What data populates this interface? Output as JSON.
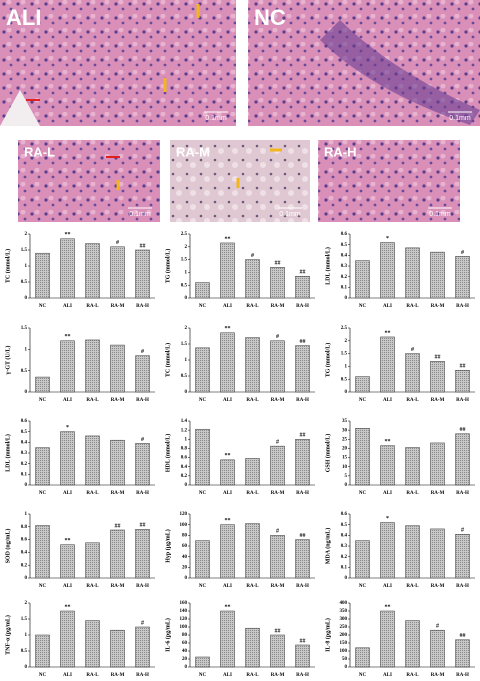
{
  "images": [
    {
      "label": "ALI",
      "scale": "0.1mm"
    },
    {
      "label": "NC",
      "scale": "0.1mm"
    },
    {
      "label": "RA-L",
      "scale": "0.1mm"
    },
    {
      "label": "RA-M",
      "scale": "0.1mm"
    },
    {
      "label": "RA-H",
      "scale": "0.1mm"
    }
  ],
  "chart_data": [
    {
      "type": "bar",
      "ylabel": "TC (mmol/L)",
      "categories": [
        "NC",
        "ALI",
        "RA-L",
        "RA-M",
        "RA-H"
      ],
      "values": [
        1.4,
        1.85,
        1.7,
        1.6,
        1.5
      ],
      "markers": [
        null,
        "**",
        null,
        "#",
        "##"
      ],
      "ylim": [
        0,
        2
      ],
      "yticks": [
        0,
        0.5,
        1,
        1.5,
        2
      ],
      "color": "#b0b0b0"
    },
    {
      "type": "bar",
      "ylabel": "TG (mmol/L)",
      "categories": [
        "NC",
        "ALI",
        "RA-L",
        "RA-M",
        "RA-H"
      ],
      "values": [
        0.6,
        2.15,
        1.5,
        1.2,
        0.85
      ],
      "markers": [
        null,
        "**",
        "#",
        "##",
        "##"
      ],
      "ylim": [
        0,
        2.5
      ],
      "yticks": [
        0,
        0.5,
        1,
        1.5,
        2,
        2.5
      ],
      "color": "#b0b0b0"
    },
    {
      "type": "bar",
      "ylabel": "LDL (mmol/L)",
      "categories": [
        "NC",
        "ALI",
        "RA-L",
        "RA-M",
        "RA-H"
      ],
      "values": [
        0.35,
        0.52,
        0.47,
        0.43,
        0.39
      ],
      "markers": [
        null,
        "*",
        null,
        null,
        "#"
      ],
      "ylim": [
        0,
        0.6
      ],
      "yticks": [
        0,
        0.1,
        0.2,
        0.3,
        0.4,
        0.5,
        0.6
      ],
      "color": "#b0b0b0"
    },
    {
      "type": "bar",
      "ylabel": "γ-GT (U/L)",
      "categories": [
        "NC",
        "ALI",
        "RA-L",
        "RA-M",
        "RA-H"
      ],
      "values": [
        0.35,
        1.2,
        1.22,
        1.1,
        0.85
      ],
      "markers": [
        null,
        "**",
        null,
        null,
        "#"
      ],
      "ylim": [
        0,
        1.5
      ],
      "yticks": [
        0,
        0.5,
        1,
        1.5
      ],
      "color": "#b0b0b0"
    },
    {
      "type": "bar",
      "ylabel": "TC (mmol/L)",
      "categories": [
        "NC",
        "ALI",
        "RA-L",
        "RA-M",
        "RA-H"
      ],
      "values": [
        1.38,
        1.85,
        1.7,
        1.6,
        1.45
      ],
      "markers": [
        null,
        "**",
        null,
        "#",
        "##"
      ],
      "ylim": [
        0,
        2
      ],
      "yticks": [
        0,
        0.5,
        1,
        1.5,
        2
      ],
      "color": "#b0b0b0"
    },
    {
      "type": "bar",
      "ylabel": "TG (mmol/L)",
      "categories": [
        "NC",
        "ALI",
        "RA-L",
        "RA-M",
        "RA-H"
      ],
      "values": [
        0.6,
        2.15,
        1.5,
        1.2,
        0.85
      ],
      "markers": [
        null,
        "**",
        "#",
        "##",
        "##"
      ],
      "ylim": [
        0,
        2.5
      ],
      "yticks": [
        0,
        0.5,
        1,
        1.5,
        2,
        2.5
      ],
      "color": "#b0b0b0"
    },
    {
      "type": "bar",
      "ylabel": "LDL (mmol/L)",
      "categories": [
        "NC",
        "ALI",
        "RA-L",
        "RA-M",
        "RA-H"
      ],
      "values": [
        0.35,
        0.5,
        0.46,
        0.42,
        0.39
      ],
      "markers": [
        null,
        "*",
        null,
        null,
        "#"
      ],
      "ylim": [
        0,
        0.6
      ],
      "yticks": [
        0,
        0.1,
        0.2,
        0.3,
        0.4,
        0.5,
        0.6
      ],
      "color": "#b0b0b0"
    },
    {
      "type": "bar",
      "ylabel": "HDL (mmol/L)",
      "categories": [
        "NC",
        "ALI",
        "RA-L",
        "RA-M",
        "RA-H"
      ],
      "values": [
        1.22,
        0.55,
        0.58,
        0.85,
        1.0
      ],
      "markers": [
        null,
        "**",
        null,
        "#",
        "##"
      ],
      "ylim": [
        0,
        1.4
      ],
      "yticks": [
        0,
        0.2,
        0.4,
        0.6,
        0.8,
        1,
        1.2,
        1.4
      ],
      "color": "#b0b0b0"
    },
    {
      "type": "bar",
      "ylabel": "GSH (mmol/L)",
      "categories": [
        "NC",
        "ALI",
        "RA-L",
        "RA-M",
        "RA-H"
      ],
      "values": [
        31,
        21.5,
        20.5,
        23,
        28
      ],
      "markers": [
        null,
        "**",
        null,
        null,
        "##"
      ],
      "ylim": [
        0,
        35
      ],
      "yticks": [
        0,
        5,
        10,
        15,
        20,
        25,
        30,
        35
      ],
      "color": "#b0b0b0"
    },
    {
      "type": "bar",
      "ylabel": "SOD (ng/mL)",
      "categories": [
        "NC",
        "ALI",
        "RA-L",
        "RA-M",
        "RA-H"
      ],
      "values": [
        0.82,
        0.52,
        0.55,
        0.75,
        0.76
      ],
      "markers": [
        null,
        "**",
        null,
        "##",
        "##"
      ],
      "ylim": [
        0,
        1
      ],
      "yticks": [
        0,
        0.2,
        0.4,
        0.6,
        0.8,
        1
      ],
      "color": "#b0b0b0"
    },
    {
      "type": "bar",
      "ylabel": "Hyp (μg/mL)",
      "categories": [
        "NC",
        "ALI",
        "RA-L",
        "RA-M",
        "RA-H"
      ],
      "values": [
        70,
        100,
        102,
        80,
        72
      ],
      "markers": [
        null,
        "**",
        null,
        "#",
        "##"
      ],
      "ylim": [
        0,
        120
      ],
      "yticks": [
        0,
        20,
        40,
        60,
        80,
        100,
        120
      ],
      "color": "#b0b0b0"
    },
    {
      "type": "bar",
      "ylabel": "MDA (ng/mL)",
      "categories": [
        "NC",
        "ALI",
        "RA-L",
        "RA-M",
        "RA-H"
      ],
      "values": [
        0.35,
        0.52,
        0.49,
        0.46,
        0.41
      ],
      "markers": [
        null,
        "*",
        null,
        null,
        "#"
      ],
      "ylim": [
        0,
        0.6
      ],
      "yticks": [
        0,
        0.1,
        0.2,
        0.3,
        0.4,
        0.5,
        0.6
      ],
      "color": "#b0b0b0"
    },
    {
      "type": "bar",
      "ylabel": "TNF-α (pg/mL)",
      "categories": [
        "NC",
        "ALI",
        "RA-L",
        "RA-M",
        "RA-H"
      ],
      "values": [
        1.0,
        1.75,
        1.45,
        1.15,
        1.25
      ],
      "markers": [
        null,
        "**",
        null,
        null,
        "#"
      ],
      "ylim": [
        0,
        2
      ],
      "yticks": [
        0,
        0.5,
        1,
        1.5,
        2
      ],
      "color": "#b0b0b0"
    },
    {
      "type": "bar",
      "ylabel": "IL-6 (pg/mL)",
      "categories": [
        "NC",
        "ALI",
        "RA-L",
        "RA-M",
        "RA-H"
      ],
      "values": [
        25,
        140,
        97,
        80,
        55
      ],
      "markers": [
        null,
        "**",
        null,
        "##",
        "##"
      ],
      "ylim": [
        0,
        160
      ],
      "yticks": [
        0,
        20,
        40,
        60,
        80,
        100,
        120,
        140,
        160
      ],
      "color": "#b0b0b0"
    },
    {
      "type": "bar",
      "ylabel": "IL-8 (pg/mL)",
      "categories": [
        "NC",
        "ALI",
        "RA-L",
        "RA-M",
        "RA-H"
      ],
      "values": [
        120,
        350,
        290,
        230,
        170
      ],
      "markers": [
        null,
        "**",
        null,
        "#",
        "##"
      ],
      "ylim": [
        0,
        400
      ],
      "yticks": [
        0,
        50,
        100,
        150,
        200,
        250,
        300,
        350,
        400
      ],
      "color": "#b0b0b0"
    }
  ]
}
